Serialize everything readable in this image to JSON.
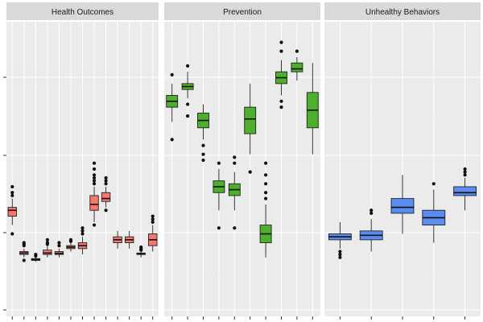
{
  "chart_data": {
    "type": "boxplot",
    "grid": true,
    "yaxis": {
      "tick_labels_visible": false,
      "ylim": [
        0,
        1
      ]
    },
    "xaxis": {
      "tick_labels_visible": false
    },
    "panels": [
      {
        "title": "Health Outcomes",
        "color": "#F8766D",
        "boxes": [
          {
            "q1": 0.34,
            "median": 0.36,
            "q3": 0.37,
            "whisker_low": 0.31,
            "whisker_high": 0.4,
            "outliers": [
              0.28,
              0.41,
              0.42,
              0.44
            ]
          },
          {
            "q1": 0.21,
            "median": 0.215,
            "q3": 0.22,
            "whisker_low": 0.2,
            "whisker_high": 0.23,
            "outliers": [
              0.19,
              0.24,
              0.245,
              0.25
            ]
          },
          {
            "q1": 0.19,
            "median": 0.193,
            "q3": 0.196,
            "whisker_low": 0.185,
            "whisker_high": 0.2,
            "outliers": [
              0.205,
              0.21
            ]
          },
          {
            "q1": 0.21,
            "median": 0.215,
            "q3": 0.225,
            "whisker_low": 0.2,
            "whisker_high": 0.24,
            "outliers": [
              0.245,
              0.25,
              0.26
            ]
          },
          {
            "q1": 0.21,
            "median": 0.214,
            "q3": 0.22,
            "whisker_low": 0.2,
            "whisker_high": 0.23,
            "outliers": [
              0.24,
              0.25
            ]
          },
          {
            "q1": 0.23,
            "median": 0.235,
            "q3": 0.24,
            "whisker_low": 0.22,
            "whisker_high": 0.25,
            "outliers": [
              0.255,
              0.26
            ]
          },
          {
            "q1": 0.23,
            "median": 0.24,
            "q3": 0.25,
            "whisker_low": 0.21,
            "whisker_high": 0.27,
            "outliers": [
              0.28,
              0.29,
              0.3
            ]
          },
          {
            "q1": 0.36,
            "median": 0.38,
            "q3": 0.41,
            "whisker_low": 0.32,
            "whisker_high": 0.44,
            "outliers": [
              0.31,
              0.45,
              0.46,
              0.47,
              0.48,
              0.5,
              0.52
            ]
          },
          {
            "q1": 0.39,
            "median": 0.4,
            "q3": 0.42,
            "whisker_low": 0.37,
            "whisker_high": 0.44,
            "outliers": [
              0.36,
              0.45,
              0.46,
              0.47
            ]
          },
          {
            "q1": 0.25,
            "median": 0.26,
            "q3": 0.27,
            "whisker_low": 0.23,
            "whisker_high": 0.29,
            "outliers": []
          },
          {
            "q1": 0.25,
            "median": 0.26,
            "q3": 0.27,
            "whisker_low": 0.23,
            "whisker_high": 0.29,
            "outliers": []
          },
          {
            "q1": 0.21,
            "median": 0.212,
            "q3": 0.215,
            "whisker_low": 0.2,
            "whisker_high": 0.22,
            "outliers": [
              0.225,
              0.23,
              0.235
            ]
          },
          {
            "q1": 0.24,
            "median": 0.26,
            "q3": 0.28,
            "whisker_low": 0.22,
            "whisker_high": 0.31,
            "outliers": [
              0.32,
              0.33,
              0.34
            ]
          }
        ]
      },
      {
        "title": "Prevention",
        "color": "#4DAF2B",
        "boxes": [
          {
            "q1": 0.71,
            "median": 0.73,
            "q3": 0.75,
            "whisker_low": 0.66,
            "whisker_high": 0.79,
            "outliers": [
              0.6,
              0.82
            ]
          },
          {
            "q1": 0.77,
            "median": 0.78,
            "q3": 0.79,
            "whisker_low": 0.74,
            "whisker_high": 0.83,
            "outliers": [
              0.68,
              0.72,
              0.85
            ]
          },
          {
            "q1": 0.64,
            "median": 0.665,
            "q3": 0.69,
            "whisker_low": 0.6,
            "whisker_high": 0.72,
            "outliers": [
              0.53,
              0.55,
              0.58
            ]
          },
          {
            "q1": 0.42,
            "median": 0.44,
            "q3": 0.46,
            "whisker_low": 0.36,
            "whisker_high": 0.5,
            "outliers": [
              0.3,
              0.52
            ]
          },
          {
            "q1": 0.41,
            "median": 0.43,
            "q3": 0.45,
            "whisker_low": 0.36,
            "whisker_high": 0.49,
            "outliers": [
              0.3,
              0.52,
              0.54
            ]
          },
          {
            "q1": 0.62,
            "median": 0.67,
            "q3": 0.71,
            "whisker_low": 0.55,
            "whisker_high": 0.79,
            "outliers": [
              0.49
            ]
          },
          {
            "q1": 0.25,
            "median": 0.28,
            "q3": 0.31,
            "whisker_low": 0.2,
            "whisker_high": 0.38,
            "outliers": [
              0.4,
              0.42,
              0.45,
              0.48,
              0.52
            ]
          },
          {
            "q1": 0.79,
            "median": 0.81,
            "q3": 0.83,
            "whisker_low": 0.75,
            "whisker_high": 0.87,
            "outliers": [
              0.71,
              0.73,
              0.9,
              0.93
            ]
          },
          {
            "q1": 0.83,
            "median": 0.84,
            "q3": 0.86,
            "whisker_low": 0.8,
            "whisker_high": 0.88,
            "outliers": [
              0.9
            ]
          },
          {
            "q1": 0.64,
            "median": 0.7,
            "q3": 0.76,
            "whisker_low": 0.55,
            "whisker_high": 0.86,
            "outliers": []
          }
        ]
      },
      {
        "title": "Unhealthy Behaviors",
        "color": "#5A8CF2",
        "boxes": [
          {
            "q1": 0.26,
            "median": 0.27,
            "q3": 0.28,
            "whisker_low": 0.23,
            "whisker_high": 0.32,
            "outliers": [
              0.2,
              0.21,
              0.22
            ]
          },
          {
            "q1": 0.26,
            "median": 0.275,
            "q3": 0.29,
            "whisker_low": 0.22,
            "whisker_high": 0.33,
            "outliers": [
              0.35,
              0.36
            ]
          },
          {
            "q1": 0.35,
            "median": 0.37,
            "q3": 0.4,
            "whisker_low": 0.28,
            "whisker_high": 0.48,
            "outliers": []
          },
          {
            "q1": 0.31,
            "median": 0.335,
            "q3": 0.36,
            "whisker_low": 0.25,
            "whisker_high": 0.43,
            "outliers": [
              0.45
            ]
          },
          {
            "q1": 0.41,
            "median": 0.42,
            "q3": 0.44,
            "whisker_low": 0.36,
            "whisker_high": 0.47,
            "outliers": [
              0.48,
              0.49,
              0.5
            ]
          }
        ]
      }
    ]
  }
}
